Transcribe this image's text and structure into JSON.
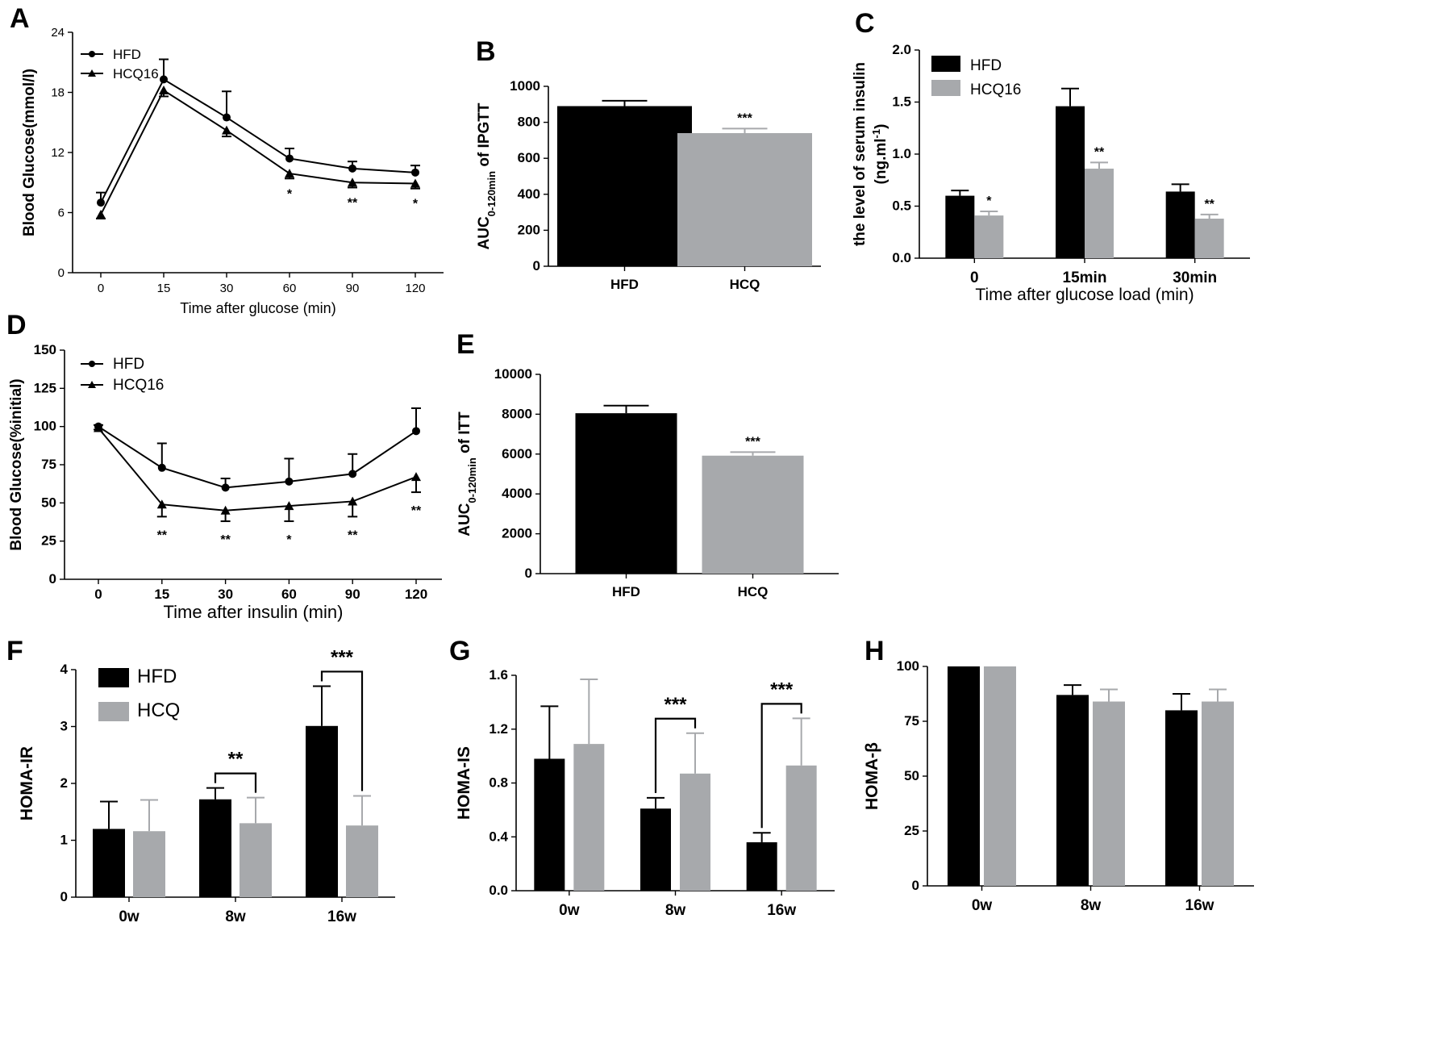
{
  "colors": {
    "hfd": "#000000",
    "hcq": "#a7a9ac",
    "axis": "#000000"
  },
  "chart_data": [
    {
      "id": "A",
      "panel_label": "A",
      "type": "line",
      "title": "",
      "xlabel": "Time after glucose (min)",
      "ylabel": "Blood Glucose(mmol/l)",
      "x": [
        0,
        15,
        30,
        60,
        90,
        120
      ],
      "x_tick_labels": [
        "0",
        "15",
        "30",
        "60",
        "90",
        "120"
      ],
      "ylim": [
        0,
        24
      ],
      "y_ticks": [
        0,
        6,
        12,
        18,
        24
      ],
      "y_tick_labels": [
        "0",
        "6",
        "12",
        "18",
        "24"
      ],
      "legend_position": "top-left",
      "series": [
        {
          "name": "HFD",
          "marker": "circle",
          "values": [
            7.0,
            19.3,
            15.5,
            11.4,
            10.4,
            10.0
          ],
          "errors": [
            1.0,
            2.0,
            2.6,
            1.0,
            0.7,
            0.7
          ]
        },
        {
          "name": "HCQ16",
          "marker": "triangle",
          "values": [
            5.8,
            18.2,
            14.2,
            9.9,
            9.0,
            8.9
          ],
          "errors": [
            0.4,
            0.6,
            0.6,
            0.5,
            0.5,
            0.5
          ]
        }
      ],
      "annotations": [
        {
          "x": 60,
          "text": "*"
        },
        {
          "x": 90,
          "text": "**"
        },
        {
          "x": 120,
          "text": "*"
        }
      ]
    },
    {
      "id": "B",
      "panel_label": "B",
      "type": "bar",
      "title": "",
      "xlabel": "",
      "ylabel": "AUC0-120min of IPGTT",
      "categories": [
        "HFD",
        "HCQ"
      ],
      "values": [
        890,
        740
      ],
      "errors": [
        30,
        25
      ],
      "ylim": [
        0,
        1000
      ],
      "y_ticks": [
        0,
        200,
        400,
        600,
        800,
        1000
      ],
      "y_tick_labels": [
        "0",
        "200",
        "400",
        "600",
        "800",
        "1000"
      ],
      "annotations": [
        {
          "category": "HCQ",
          "text": "***"
        }
      ]
    },
    {
      "id": "C",
      "panel_label": "C",
      "type": "bar",
      "title": "",
      "xlabel": "Time after glucose load (min)",
      "ylabel": "the level of serum insulin (ng.ml-1)",
      "categories": [
        "0",
        "15min",
        "30min"
      ],
      "ylim": [
        0,
        2.0
      ],
      "y_ticks": [
        0,
        0.5,
        1.0,
        1.5,
        2.0
      ],
      "y_tick_labels": [
        "0.0",
        "0.5",
        "1.0",
        "1.5",
        "2.0"
      ],
      "legend_position": "top-left",
      "series": [
        {
          "name": "HFD",
          "values": [
            0.6,
            1.46,
            0.64
          ],
          "errors": [
            0.05,
            0.17,
            0.07
          ]
        },
        {
          "name": "HCQ16",
          "values": [
            0.41,
            0.86,
            0.38
          ],
          "errors": [
            0.04,
            0.06,
            0.04
          ]
        }
      ],
      "annotations": [
        {
          "category": "0",
          "text": "*"
        },
        {
          "category": "15min",
          "text": "**"
        },
        {
          "category": "30min",
          "text": "**"
        }
      ]
    },
    {
      "id": "D",
      "panel_label": "D",
      "type": "line",
      "title": "",
      "xlabel": "Time after insulin (min)",
      "ylabel": "Blood Glucose(%initial)",
      "x": [
        0,
        15,
        30,
        60,
        90,
        120
      ],
      "x_tick_labels": [
        "0",
        "15",
        "30",
        "60",
        "90",
        "120"
      ],
      "ylim": [
        0,
        150
      ],
      "y_ticks": [
        0,
        25,
        50,
        75,
        100,
        125,
        150
      ],
      "y_tick_labels": [
        "0",
        "25",
        "50",
        "75",
        "100",
        "125",
        "150"
      ],
      "legend_position": "top-left",
      "series": [
        {
          "name": "HFD",
          "marker": "circle",
          "values": [
            100,
            73,
            60,
            64,
            69,
            97
          ],
          "errors": [
            1,
            16,
            6,
            15,
            13,
            15
          ]
        },
        {
          "name": "HCQ16",
          "marker": "triangle",
          "values": [
            99,
            49,
            45,
            48,
            51,
            67
          ],
          "errors": [
            1,
            8,
            7,
            10,
            10,
            10
          ]
        }
      ],
      "annotations": [
        {
          "x": 15,
          "text": "**"
        },
        {
          "x": 30,
          "text": "**"
        },
        {
          "x": 60,
          "text": "*"
        },
        {
          "x": 90,
          "text": "**"
        },
        {
          "x": 120,
          "text": "**"
        }
      ]
    },
    {
      "id": "E",
      "panel_label": "E",
      "type": "bar",
      "title": "",
      "xlabel": "",
      "ylabel": "AUC0-120min of ITT",
      "categories": [
        "HFD",
        "HCQ"
      ],
      "values": [
        8050,
        5920
      ],
      "errors": [
        380,
        180
      ],
      "ylim": [
        0,
        10000
      ],
      "y_ticks": [
        0,
        2000,
        4000,
        6000,
        8000,
        10000
      ],
      "y_tick_labels": [
        "0",
        "2000",
        "4000",
        "6000",
        "8000",
        "10000"
      ],
      "annotations": [
        {
          "category": "HCQ",
          "text": "***"
        }
      ]
    },
    {
      "id": "F",
      "panel_label": "F",
      "type": "bar",
      "title": "",
      "xlabel": "",
      "ylabel": "HOMA-IR",
      "categories": [
        "0w",
        "8w",
        "16w"
      ],
      "ylim": [
        0,
        4
      ],
      "y_ticks": [
        0,
        1,
        2,
        3,
        4
      ],
      "y_tick_labels": [
        "0",
        "1",
        "2",
        "3",
        "4"
      ],
      "legend_position": "top-left",
      "series": [
        {
          "name": "HFD",
          "values": [
            1.2,
            1.72,
            3.01
          ],
          "errors": [
            0.48,
            0.2,
            0.7
          ]
        },
        {
          "name": "HCQ",
          "values": [
            1.16,
            1.3,
            1.26
          ],
          "errors": [
            0.55,
            0.45,
            0.52
          ]
        }
      ],
      "annotations": [
        {
          "category": "8w",
          "text": "**"
        },
        {
          "category": "16w",
          "text": "***"
        }
      ]
    },
    {
      "id": "G",
      "panel_label": "G",
      "type": "bar",
      "title": "",
      "xlabel": "",
      "ylabel": "HOMA-IS",
      "categories": [
        "0w",
        "8w",
        "16w"
      ],
      "ylim": [
        0,
        1.6
      ],
      "y_ticks": [
        0,
        0.4,
        0.8,
        1.2,
        1.6
      ],
      "y_tick_labels": [
        "0.0",
        "0.4",
        "0.8",
        "1.2",
        "1.6"
      ],
      "series": [
        {
          "name": "HFD",
          "values": [
            0.98,
            0.61,
            0.36
          ],
          "errors": [
            0.39,
            0.08,
            0.07
          ]
        },
        {
          "name": "HCQ",
          "values": [
            1.09,
            0.87,
            0.93
          ],
          "errors": [
            0.48,
            0.3,
            0.35
          ]
        }
      ],
      "annotations": [
        {
          "category": "8w",
          "text": "***"
        },
        {
          "category": "16w",
          "text": "***"
        }
      ]
    },
    {
      "id": "H",
      "panel_label": "H",
      "type": "bar",
      "title": "",
      "xlabel": "",
      "ylabel": "HOMA-β",
      "categories": [
        "0w",
        "8w",
        "16w"
      ],
      "ylim": [
        0,
        100
      ],
      "y_ticks": [
        0,
        25,
        50,
        75,
        100
      ],
      "y_tick_labels": [
        "0",
        "25",
        "50",
        "75",
        "100"
      ],
      "series": [
        {
          "name": "HFD",
          "values": [
            100,
            87,
            80
          ],
          "errors": [
            0,
            4.5,
            7.5
          ]
        },
        {
          "name": "HCQ",
          "values": [
            100,
            84,
            84
          ],
          "errors": [
            0,
            5.5,
            5.5
          ]
        }
      ],
      "annotations": []
    }
  ]
}
